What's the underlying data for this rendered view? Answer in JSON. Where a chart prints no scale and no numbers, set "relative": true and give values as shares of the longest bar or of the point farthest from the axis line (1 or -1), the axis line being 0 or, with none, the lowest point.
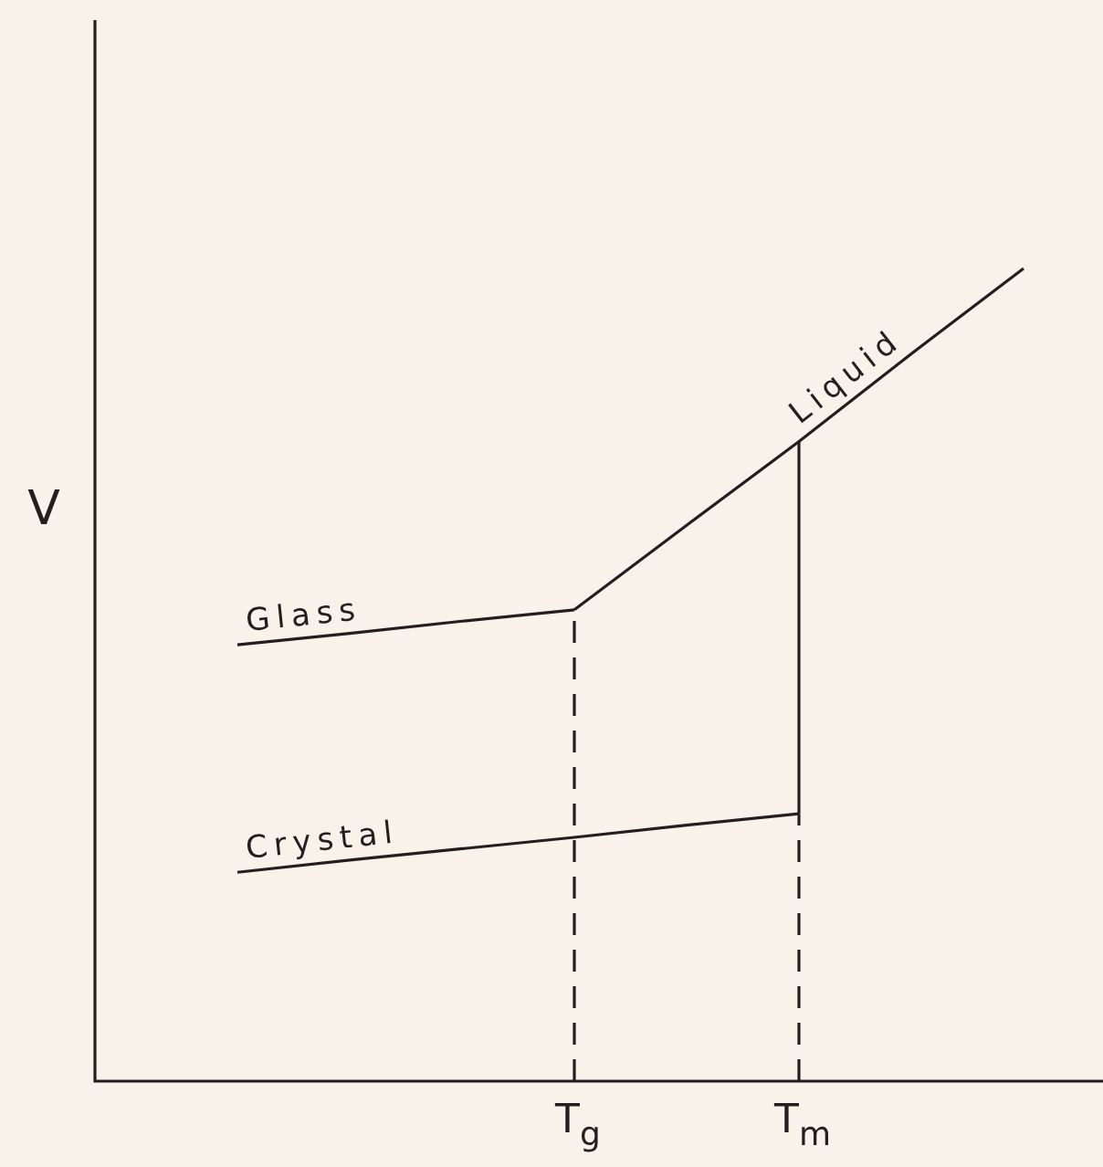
{
  "chart_data": {
    "type": "line",
    "relative": true,
    "ylabel": "V",
    "tick_labels": "x",
    "categories": [
      null,
      null,
      null,
      "T$_{g}$",
      null,
      "T$_{m}$",
      null,
      null
    ],
    "series": [
      {
        "name": "Glass",
        "color": "#231f20",
        "values": [
          0.537,
          0.551,
          0.566,
          0.58,
          null,
          null,
          null,
          null
        ]
      },
      {
        "name": "Liquid",
        "color": "#231f20",
        "values": [
          null,
          null,
          null,
          0.58,
          0.684,
          0.787,
          0.895,
          1
        ]
      },
      {
        "name": "Crystal",
        "color": "#231f20",
        "values": [
          0.257,
          0.272,
          0.286,
          0.3,
          0.315,
          0.329,
          null,
          null
        ]
      },
      {
        "color": "#231f20",
        "x": [
          "T$_{m}$",
          "T$_{m}$"
        ],
        "values": [
          0.329,
          0.787
        ]
      },
      {
        "color": "#231f20",
        "line_style": "dashed",
        "x": [
          "T$_{g}$",
          "T$_{g}$"
        ],
        "values": [
          0,
          0.58
        ]
      },
      {
        "color": "#231f20",
        "line_style": "dashed",
        "x": [
          "T$_{m}$",
          "T$_{m}$"
        ],
        "values": [
          0,
          0.329
        ]
      }
    ]
  }
}
